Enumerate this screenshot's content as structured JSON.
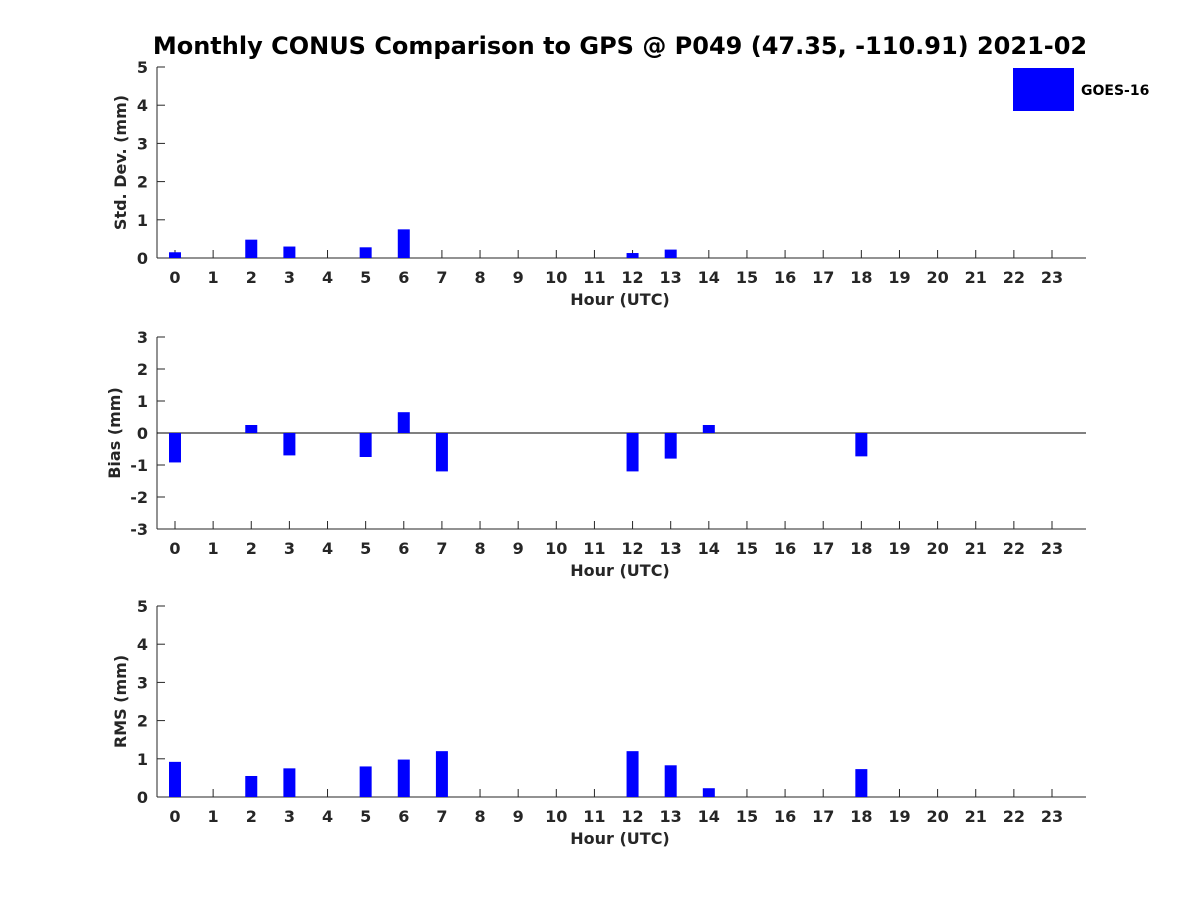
{
  "title": "Monthly CONUS Comparison to GPS @ P049 (47.35, -110.91) 2021-02",
  "legend": {
    "label": "GOES-16",
    "color": "#0000ff",
    "placement": "top-right"
  },
  "chart_data": [
    {
      "type": "bar",
      "xlabel": "Hour (UTC)",
      "ylabel": "Std. Dev. (mm)",
      "ylim": [
        0,
        5
      ],
      "yticks": [
        0,
        1,
        2,
        3,
        4,
        5
      ],
      "categories": [
        0,
        1,
        2,
        3,
        4,
        5,
        6,
        7,
        8,
        9,
        10,
        11,
        12,
        13,
        14,
        15,
        16,
        17,
        18,
        19,
        20,
        21,
        22,
        23
      ],
      "series": [
        {
          "name": "GOES-16",
          "values": [
            0.15,
            null,
            0.48,
            0.3,
            null,
            0.28,
            0.75,
            0.0,
            null,
            null,
            null,
            null,
            0.13,
            0.22,
            0.0,
            null,
            null,
            null,
            0.0,
            null,
            null,
            null,
            null,
            null
          ]
        }
      ]
    },
    {
      "type": "bar",
      "xlabel": "Hour (UTC)",
      "ylabel": "Bias (mm)",
      "ylim": [
        -3,
        3
      ],
      "yticks": [
        -3,
        -2,
        -1,
        0,
        1,
        2,
        3
      ],
      "zero_line": true,
      "categories": [
        0,
        1,
        2,
        3,
        4,
        5,
        6,
        7,
        8,
        9,
        10,
        11,
        12,
        13,
        14,
        15,
        16,
        17,
        18,
        19,
        20,
        21,
        22,
        23
      ],
      "series": [
        {
          "name": "GOES-16",
          "values": [
            -0.92,
            null,
            0.25,
            -0.7,
            null,
            -0.75,
            0.65,
            -1.2,
            null,
            null,
            null,
            null,
            -1.2,
            -0.8,
            0.25,
            null,
            null,
            null,
            -0.73,
            null,
            null,
            null,
            null,
            null
          ]
        }
      ]
    },
    {
      "type": "bar",
      "xlabel": "Hour (UTC)",
      "ylabel": "RMS (mm)",
      "ylim": [
        0,
        5
      ],
      "yticks": [
        0,
        1,
        2,
        3,
        4,
        5
      ],
      "categories": [
        0,
        1,
        2,
        3,
        4,
        5,
        6,
        7,
        8,
        9,
        10,
        11,
        12,
        13,
        14,
        15,
        16,
        17,
        18,
        19,
        20,
        21,
        22,
        23
      ],
      "series": [
        {
          "name": "GOES-16",
          "values": [
            0.92,
            null,
            0.55,
            0.75,
            null,
            0.8,
            0.98,
            1.2,
            null,
            null,
            null,
            null,
            1.2,
            0.83,
            0.23,
            null,
            null,
            null,
            0.73,
            null,
            null,
            null,
            null,
            null
          ]
        }
      ]
    }
  ]
}
